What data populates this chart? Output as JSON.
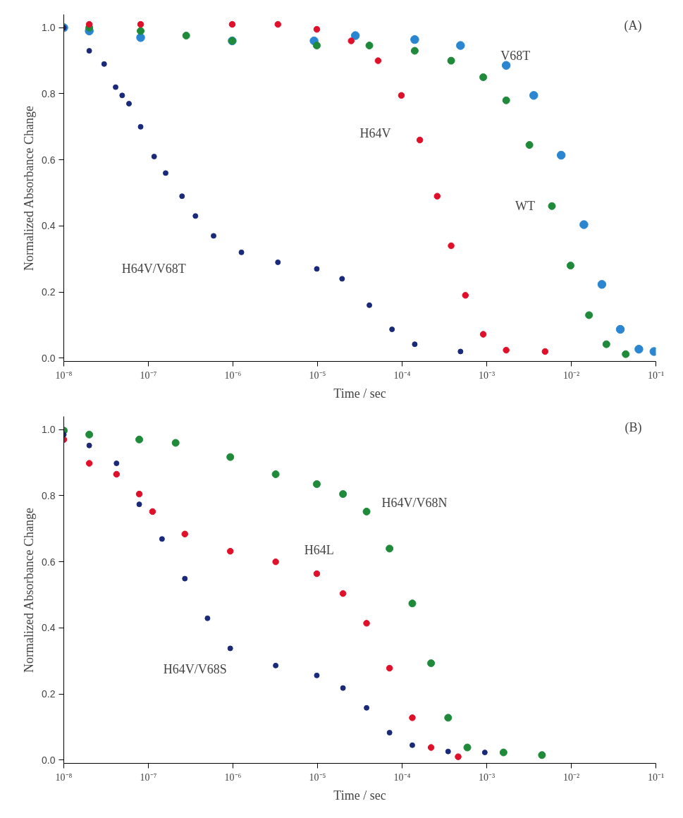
{
  "chart_data": [
    {
      "type": "scatter",
      "title": "(A)",
      "xlabel": "Time / sec",
      "ylabel": "Normalized Absorbance Change",
      "log": "x",
      "marker": "circle",
      "grid": false,
      "xlim": [
        1e-08,
        0.1
      ],
      "xticks": [
        {
          "value": 1e-08,
          "label": "10⁻⁸"
        },
        {
          "value": 1e-07,
          "label": "10⁻⁷"
        },
        {
          "value": 1e-06,
          "label": "10⁻⁶"
        },
        {
          "value": 1e-05,
          "label": "10⁻⁵"
        },
        {
          "value": 0.0001,
          "label": "10⁻⁴"
        },
        {
          "value": 0.001,
          "label": "10⁻³"
        },
        {
          "value": 0.01,
          "label": "10⁻²"
        },
        {
          "value": 0.1,
          "label": "10⁻¹"
        }
      ],
      "ylim": [
        -0.01,
        1.04
      ],
      "yticks": [
        {
          "value": 0,
          "label": "0.0"
        },
        {
          "value": 0.2,
          "label": "0.2"
        },
        {
          "value": 0.4,
          "label": "0.4"
        },
        {
          "value": 0.6,
          "label": "0.6"
        },
        {
          "value": 0.8,
          "label": "0.8"
        },
        {
          "value": 1,
          "label": "1.0"
        }
      ],
      "series": [
        {
          "name": "V68T",
          "color": "#2a86d0",
          "x": [
            1e-08,
            2e-08,
            8.1e-08,
            9.8e-07,
            9.1e-06,
            2.8e-05,
            0.000141,
            0.00049,
            0.0017,
            0.0036,
            0.0076,
            0.0141,
            0.023,
            0.038,
            0.063,
            0.095
          ],
          "values": [
            1.0,
            0.99,
            0.97,
            0.96,
            0.96,
            0.976,
            0.964,
            0.946,
            0.886,
            0.795,
            0.614,
            0.404,
            0.223,
            0.087,
            0.027,
            0.02
          ]
        },
        {
          "name": "WT",
          "color": "#1f8a3a",
          "x": [
            2e-08,
            8.1e-08,
            2.8e-07,
            9.8e-07,
            9.8e-06,
            4.1e-05,
            0.000141,
            0.00038,
            0.00091,
            0.0017,
            0.0032,
            0.0059,
            0.0098,
            0.0162,
            0.026,
            0.044
          ],
          "values": [
            1.0,
            0.99,
            0.976,
            0.96,
            0.946,
            0.946,
            0.93,
            0.9,
            0.85,
            0.78,
            0.645,
            0.46,
            0.28,
            0.13,
            0.042,
            0.012
          ]
        },
        {
          "name": "H64V",
          "color": "#e0102a",
          "x": [
            2e-08,
            8.1e-08,
            9.8e-07,
            3.4e-06,
            9.8e-06,
            2.5e-05,
            5.2e-05,
            9.8e-05,
            0.000162,
            0.00026,
            0.00038,
            0.00056,
            0.00091,
            0.0017,
            0.0049
          ],
          "values": [
            1.01,
            1.01,
            1.01,
            1.01,
            0.995,
            0.96,
            0.9,
            0.795,
            0.66,
            0.49,
            0.34,
            0.19,
            0.072,
            0.024,
            0.02
          ]
        },
        {
          "name": "H64V/V68T",
          "color": "#1a2a7a",
          "x": [
            1e-08,
            2e-08,
            3e-08,
            4.1e-08,
            4.9e-08,
            5.9e-08,
            8.1e-08,
            1.17e-07,
            1.6e-07,
            2.5e-07,
            3.6e-07,
            5.9e-07,
            1.26e-06,
            3.4e-06,
            9.8e-06,
            1.95e-05,
            4.1e-05,
            7.6e-05,
            0.000141,
            0.00049
          ],
          "values": [
            1.0,
            0.93,
            0.89,
            0.82,
            0.795,
            0.77,
            0.7,
            0.61,
            0.56,
            0.49,
            0.43,
            0.37,
            0.32,
            0.29,
            0.27,
            0.24,
            0.16,
            0.087,
            0.042,
            0.02
          ]
        }
      ]
    },
    {
      "type": "scatter",
      "title": "(B)",
      "xlabel": "Time / sec",
      "ylabel": "Normalized Absorbance Change",
      "log": "x",
      "marker": "circle",
      "grid": false,
      "xlim": [
        1e-08,
        0.1
      ],
      "xticks": [
        {
          "value": 1e-08,
          "label": "10⁻⁸"
        },
        {
          "value": 1e-07,
          "label": "10⁻⁷"
        },
        {
          "value": 1e-06,
          "label": "10⁻⁶"
        },
        {
          "value": 1e-05,
          "label": "10⁻⁵"
        },
        {
          "value": 0.0001,
          "label": "10⁻⁴"
        },
        {
          "value": 0.001,
          "label": "10⁻³"
        },
        {
          "value": 0.01,
          "label": "10⁻²"
        },
        {
          "value": 0.1,
          "label": "10⁻¹"
        }
      ],
      "ylim": [
        -0.01,
        1.04
      ],
      "yticks": [
        {
          "value": 0,
          "label": "0.0"
        },
        {
          "value": 0.2,
          "label": "0.2"
        },
        {
          "value": 0.4,
          "label": "0.4"
        },
        {
          "value": 0.6,
          "label": "0.6"
        },
        {
          "value": 0.8,
          "label": "0.8"
        },
        {
          "value": 1,
          "label": "1.0"
        }
      ],
      "series": [
        {
          "name": "H64V/V68N",
          "color": "#1f8a3a",
          "x": [
            1e-08,
            2e-08,
            7.8e-08,
            2.1e-07,
            9.3e-07,
            3.2e-06,
            9.8e-06,
            2e-05,
            3.8e-05,
            7.1e-05,
            0.000132,
            0.00022,
            0.00035,
            0.00059,
            0.00158,
            0.0045
          ],
          "values": [
            0.997,
            0.985,
            0.97,
            0.96,
            0.917,
            0.865,
            0.835,
            0.805,
            0.752,
            0.64,
            0.474,
            0.293,
            0.128,
            0.038,
            0.023,
            0.015
          ]
        },
        {
          "name": "H64L",
          "color": "#e0102a",
          "x": [
            1e-08,
            2e-08,
            4.2e-08,
            7.8e-08,
            1.12e-07,
            2.7e-07,
            9.3e-07,
            3.2e-06,
            9.8e-06,
            2e-05,
            3.8e-05,
            7.1e-05,
            0.000132,
            0.00022,
            0.00046
          ],
          "values": [
            0.97,
            0.898,
            0.865,
            0.805,
            0.752,
            0.684,
            0.632,
            0.6,
            0.564,
            0.504,
            0.414,
            0.278,
            0.128,
            0.038,
            0.01
          ]
        },
        {
          "name": "H64V/V68S",
          "color": "#1a2a7a",
          "x": [
            1e-08,
            2e-08,
            4.2e-08,
            7.8e-08,
            1.45e-07,
            2.7e-07,
            5e-07,
            9.3e-07,
            3.2e-06,
            9.8e-06,
            2e-05,
            3.8e-05,
            7.1e-05,
            0.000132,
            0.00035,
            0.00095
          ],
          "values": [
            0.985,
            0.952,
            0.898,
            0.774,
            0.669,
            0.549,
            0.429,
            0.338,
            0.286,
            0.256,
            0.218,
            0.158,
            0.083,
            0.045,
            0.026,
            0.023
          ]
        }
      ]
    }
  ]
}
